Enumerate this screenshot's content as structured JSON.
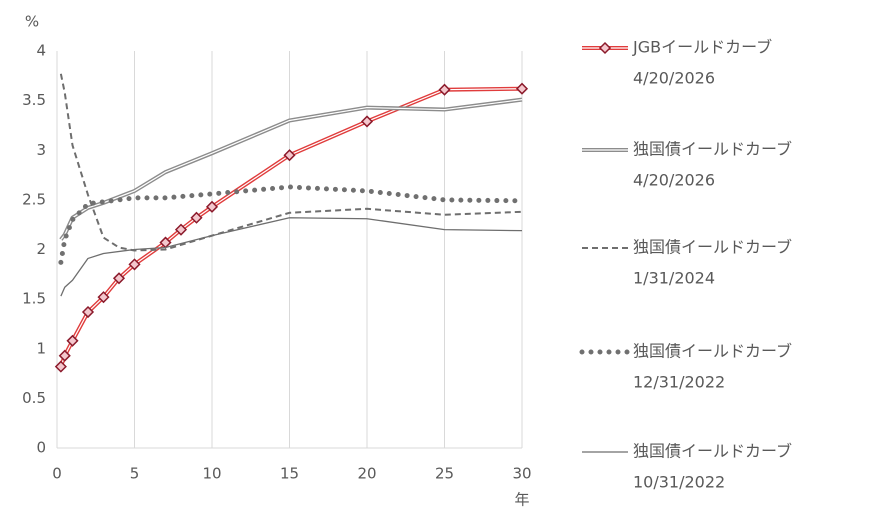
{
  "chart_data": {
    "type": "line",
    "y_unit": "%",
    "x_unit": "年",
    "xlim": [
      0,
      30
    ],
    "xticks": [
      0,
      5,
      10,
      15,
      20,
      25,
      30
    ],
    "ylim": [
      0,
      4
    ],
    "yticks": [
      0,
      0.5,
      1,
      1.5,
      2,
      2.5,
      3,
      3.5,
      4
    ],
    "grid": "x",
    "legend": "right",
    "series": [
      {
        "name": "JGBイールドカーブ",
        "date": "4/20/2026",
        "color": "#e03c3c",
        "style": "double",
        "marker": "diamond",
        "x": [
          0.25,
          0.5,
          1,
          2,
          3,
          4,
          5,
          7,
          8,
          9,
          10,
          15,
          20,
          25,
          30
        ],
        "values": [
          0.82,
          0.93,
          1.08,
          1.37,
          1.52,
          1.71,
          1.85,
          2.07,
          2.2,
          2.32,
          2.43,
          2.95,
          3.29,
          3.61,
          3.62
        ]
      },
      {
        "name": "独国債イールドカーブ",
        "date": "4/20/2026",
        "color": "#8c8c8c",
        "style": "double",
        "x": [
          0.25,
          0.5,
          1,
          2,
          3,
          5,
          7,
          10,
          15,
          20,
          25,
          30
        ],
        "values": [
          2.1,
          2.15,
          2.32,
          2.42,
          2.47,
          2.59,
          2.78,
          2.97,
          3.3,
          3.43,
          3.41,
          3.51
        ]
      },
      {
        "name": "独国債イールドカーブ",
        "date": "1/31/2024",
        "color": "#6e6e6e",
        "style": "dashed",
        "x": [
          0.25,
          0.5,
          1,
          2,
          3,
          4,
          5,
          7,
          10,
          15,
          20,
          25,
          30
        ],
        "values": [
          3.77,
          3.58,
          3.05,
          2.55,
          2.12,
          2.02,
          1.99,
          2.0,
          2.14,
          2.37,
          2.41,
          2.35,
          2.38
        ]
      },
      {
        "name": "独国債イールドカーブ",
        "date": "12/31/2022",
        "color": "#707070",
        "style": "dotted",
        "x": [
          0.25,
          0.5,
          1,
          2,
          3,
          5,
          7,
          10,
          15,
          20,
          25,
          30
        ],
        "values": [
          1.87,
          2.1,
          2.3,
          2.46,
          2.48,
          2.52,
          2.52,
          2.56,
          2.63,
          2.59,
          2.5,
          2.49
        ]
      },
      {
        "name": "独国債イールドカーブ",
        "date": "10/31/2022",
        "color": "#6e6e6e",
        "style": "solid",
        "x": [
          0.25,
          0.5,
          1,
          2,
          3,
          5,
          7,
          10,
          15,
          20,
          25,
          30
        ],
        "values": [
          1.53,
          1.62,
          1.69,
          1.91,
          1.96,
          2.0,
          2.02,
          2.14,
          2.32,
          2.31,
          2.2,
          2.19
        ]
      }
    ]
  }
}
